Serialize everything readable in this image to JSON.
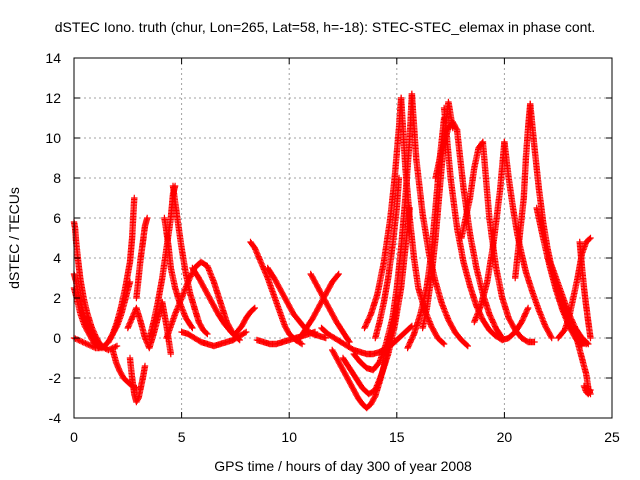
{
  "chart_data": {
    "type": "scatter",
    "title": "dSTEC Iono. truth (chur, Lon=265, Lat=58, h=-18): STEC-STEC_elemax in phase cont.",
    "xlabel": "GPS time / hours of day 300 of year 2008",
    "ylabel": "dSTEC  / TECUs",
    "xlim": [
      0,
      25
    ],
    "ylim": [
      -4,
      14
    ],
    "xticks": [
      0,
      5,
      10,
      15,
      20,
      25
    ],
    "yticks": [
      -4,
      -2,
      0,
      2,
      4,
      6,
      8,
      10,
      12,
      14
    ],
    "grid": true,
    "marker": "plus",
    "color": "#ff0000",
    "series": [
      {
        "x": [
          0.0,
          0.05,
          0.1,
          0.2,
          0.3,
          0.45,
          0.6,
          0.8,
          1.0,
          1.2,
          1.4,
          1.6,
          1.8,
          2.0
        ],
        "y": [
          5.8,
          5.5,
          4.8,
          3.8,
          2.9,
          2.0,
          1.3,
          0.6,
          0.1,
          -0.3,
          -0.5,
          -0.6,
          -0.5,
          -0.4
        ]
      },
      {
        "x": [
          0.0,
          0.1,
          0.2,
          0.35,
          0.5,
          0.7,
          0.9,
          1.1,
          1.3,
          1.5
        ],
        "y": [
          3.2,
          2.8,
          2.2,
          1.6,
          1.0,
          0.5,
          0.1,
          -0.2,
          -0.4,
          -0.5
        ]
      },
      {
        "x": [
          0.0,
          0.2,
          0.4,
          0.6,
          0.8,
          1.0,
          1.2,
          1.4,
          1.6,
          1.8,
          2.0,
          2.2,
          2.4,
          2.6
        ],
        "y": [
          0.0,
          -0.1,
          -0.2,
          -0.3,
          -0.4,
          -0.5,
          -0.5,
          -0.4,
          -0.2,
          0.2,
          0.6,
          1.2,
          2.0,
          2.8
        ]
      },
      {
        "x": [
          0.0,
          0.15,
          0.3,
          0.5,
          0.7,
          0.9,
          1.1,
          1.3
        ],
        "y": [
          2.5,
          1.9,
          1.2,
          0.6,
          0.2,
          -0.2,
          -0.4,
          -0.5
        ]
      },
      {
        "x": [
          1.6,
          1.8,
          2.0,
          2.2,
          2.4,
          2.6,
          2.7,
          2.8
        ],
        "y": [
          -0.2,
          0.2,
          0.8,
          1.6,
          2.6,
          3.8,
          5.0,
          7.0
        ]
      },
      {
        "x": [
          1.8,
          1.95,
          2.1,
          2.3,
          2.5,
          2.7,
          2.9
        ],
        "y": [
          -0.6,
          -1.2,
          -1.6,
          -2.0,
          -2.2,
          -2.4,
          -2.5
        ]
      },
      {
        "x": [
          2.6,
          2.7,
          2.8,
          2.9,
          3.0,
          3.1,
          3.2,
          3.3
        ],
        "y": [
          -1.0,
          -2.0,
          -2.8,
          -3.2,
          -3.0,
          -2.5,
          -2.0,
          -1.4
        ]
      },
      {
        "x": [
          2.9,
          3.0,
          3.1,
          3.2,
          3.3,
          3.4
        ],
        "y": [
          2.0,
          3.0,
          4.0,
          4.8,
          5.6,
          6.0
        ]
      },
      {
        "x": [
          2.5,
          2.7,
          2.9,
          3.1,
          3.3,
          3.5,
          3.7,
          3.9,
          4.1,
          4.3,
          4.5
        ],
        "y": [
          0.5,
          1.0,
          1.5,
          0.8,
          0.0,
          -0.5,
          0.2,
          1.0,
          1.8,
          0.6,
          -0.8
        ]
      },
      {
        "x": [
          3.5,
          3.7,
          3.9,
          4.1,
          4.3,
          4.5,
          4.6,
          4.7
        ],
        "y": [
          0.0,
          0.8,
          1.8,
          3.0,
          4.5,
          6.0,
          7.2,
          7.6
        ]
      },
      {
        "x": [
          4.6,
          4.8,
          5.0,
          5.2,
          5.4,
          5.6,
          5.8,
          6.0,
          6.2
        ],
        "y": [
          7.6,
          6.0,
          4.5,
          3.2,
          2.2,
          1.5,
          0.8,
          0.4,
          0.2
        ]
      },
      {
        "x": [
          4.2,
          4.3,
          4.4,
          4.5,
          4.7,
          4.9,
          5.2,
          5.5
        ],
        "y": [
          6.0,
          5.3,
          4.5,
          3.5,
          2.5,
          1.8,
          1.0,
          0.5
        ]
      },
      {
        "x": [
          4.3,
          4.5,
          4.7,
          5.0,
          5.3,
          5.6,
          5.9,
          6.2,
          6.5,
          6.8,
          7.1,
          7.4,
          7.7
        ],
        "y": [
          0.0,
          0.6,
          1.2,
          2.0,
          2.8,
          3.5,
          3.8,
          3.6,
          2.8,
          1.8,
          0.8,
          0.2,
          -0.1
        ]
      },
      {
        "x": [
          5.0,
          5.3,
          5.6,
          5.9,
          6.2,
          6.5,
          6.8,
          7.1,
          7.4,
          7.7,
          8.0
        ],
        "y": [
          0.3,
          0.2,
          0.0,
          -0.2,
          -0.3,
          -0.4,
          -0.3,
          -0.2,
          -0.1,
          0.1,
          0.3
        ]
      },
      {
        "x": [
          5.5,
          5.8,
          6.1,
          6.4,
          6.7,
          7.0,
          7.3,
          7.6
        ],
        "y": [
          3.5,
          3.0,
          2.4,
          1.8,
          1.2,
          0.7,
          0.3,
          0.0
        ]
      },
      {
        "x": [
          7.5,
          7.8,
          8.0,
          8.2,
          8.4
        ],
        "y": [
          0.2,
          0.6,
          1.0,
          1.3,
          1.5
        ]
      },
      {
        "x": [
          8.2,
          8.4,
          8.6,
          8.8,
          9.0,
          9.2,
          9.4,
          9.6,
          9.8,
          10.0,
          10.3,
          10.6
        ],
        "y": [
          4.8,
          4.5,
          4.0,
          3.5,
          3.0,
          2.4,
          1.8,
          1.2,
          0.6,
          0.2,
          -0.1,
          -0.3
        ]
      },
      {
        "x": [
          8.5,
          8.8,
          9.1,
          9.4,
          9.7,
          10.0,
          10.3,
          10.6,
          10.9,
          11.2
        ],
        "y": [
          -0.1,
          -0.2,
          -0.3,
          -0.3,
          -0.2,
          -0.1,
          0.0,
          0.1,
          0.2,
          0.3
        ]
      },
      {
        "x": [
          9.0,
          9.3,
          9.6,
          9.9,
          10.2,
          10.5,
          10.8,
          11.1,
          11.4,
          11.7
        ],
        "y": [
          3.5,
          3.0,
          2.4,
          1.8,
          1.2,
          0.8,
          0.4,
          0.2,
          0.1,
          0.0
        ]
      },
      {
        "x": [
          10.5,
          10.8,
          11.1,
          11.4,
          11.7,
          12.0,
          12.3
        ],
        "y": [
          0.0,
          0.5,
          1.0,
          1.6,
          2.2,
          2.8,
          3.2
        ]
      },
      {
        "x": [
          11.0,
          11.3,
          11.6,
          11.9,
          12.2,
          12.5,
          12.8
        ],
        "y": [
          3.2,
          2.6,
          2.0,
          1.4,
          0.8,
          0.3,
          -0.2
        ]
      },
      {
        "x": [
          11.5,
          11.8,
          12.1,
          12.4,
          12.7,
          13.0,
          13.3,
          13.6,
          13.9,
          14.2,
          14.5,
          14.8,
          15.1,
          15.4,
          15.7
        ],
        "y": [
          0.5,
          0.2,
          0.0,
          -0.2,
          -0.4,
          -0.6,
          -0.7,
          -0.8,
          -0.8,
          -0.7,
          -0.5,
          -0.3,
          0.0,
          0.3,
          0.6
        ]
      },
      {
        "x": [
          12.0,
          12.3,
          12.6,
          12.9,
          13.2,
          13.4,
          13.6,
          13.8,
          14.0,
          14.2,
          14.4,
          14.6,
          14.8,
          15.0
        ],
        "y": [
          -0.6,
          -1.2,
          -1.8,
          -2.4,
          -3.0,
          -3.3,
          -3.5,
          -3.3,
          -2.9,
          -2.2,
          -1.4,
          -0.5,
          0.5,
          1.5
        ]
      },
      {
        "x": [
          12.5,
          12.8,
          13.1,
          13.4,
          13.7,
          14.0,
          14.3,
          14.6,
          14.9,
          15.2,
          15.4,
          15.6
        ],
        "y": [
          -1.0,
          -1.5,
          -2.0,
          -2.5,
          -2.8,
          -2.6,
          -1.8,
          -0.8,
          0.6,
          2.5,
          4.5,
          6.5
        ]
      },
      {
        "x": [
          13.0,
          13.3,
          13.6,
          13.9,
          14.2,
          14.5,
          14.8,
          15.0,
          15.2,
          15.4,
          15.6,
          15.7
        ],
        "y": [
          -0.8,
          -1.2,
          -1.5,
          -1.6,
          -1.2,
          -0.3,
          1.0,
          2.5,
          4.5,
          7.0,
          10.0,
          12.2
        ]
      },
      {
        "x": [
          13.5,
          13.8,
          14.1,
          14.4,
          14.7,
          14.9,
          15.1,
          15.2
        ],
        "y": [
          0.5,
          1.2,
          2.2,
          3.8,
          6.0,
          8.0,
          10.5,
          12.0
        ]
      },
      {
        "x": [
          15.2,
          15.4,
          15.6,
          15.8,
          16.0,
          16.3,
          16.6,
          16.9,
          17.2
        ],
        "y": [
          12.0,
          8.5,
          6.0,
          4.0,
          2.5,
          1.4,
          0.6,
          0.0,
          -0.3
        ]
      },
      {
        "x": [
          14.0,
          14.2,
          14.4,
          14.6,
          14.8,
          15.0,
          15.1
        ],
        "y": [
          0.0,
          0.8,
          1.8,
          3.0,
          4.6,
          6.5,
          8.0
        ]
      },
      {
        "x": [
          15.7,
          15.9,
          16.2,
          16.5,
          16.8,
          17.1,
          17.4,
          17.7,
          18.0,
          18.3
        ],
        "y": [
          12.2,
          9.0,
          6.2,
          4.2,
          2.8,
          1.7,
          0.9,
          0.3,
          -0.1,
          -0.4
        ]
      },
      {
        "x": [
          15.5,
          15.8,
          16.1,
          16.4,
          16.6,
          16.8,
          17.0,
          17.2
        ],
        "y": [
          -0.5,
          0.2,
          1.2,
          2.6,
          4.2,
          6.5,
          9.0,
          11.0
        ]
      },
      {
        "x": [
          16.2,
          16.4,
          16.6,
          16.8,
          17.0,
          17.2,
          17.4,
          17.6
        ],
        "y": [
          0.5,
          1.5,
          3.0,
          5.0,
          7.5,
          10.0,
          11.8,
          10.5
        ]
      },
      {
        "x": [
          17.2,
          17.5,
          17.8,
          18.1,
          18.4,
          18.7,
          19.0,
          19.3,
          19.6,
          19.9,
          20.2,
          20.5,
          20.8,
          21.1
        ],
        "y": [
          11.5,
          8.0,
          5.5,
          3.8,
          2.6,
          1.6,
          0.9,
          0.4,
          0.1,
          -0.1,
          0.0,
          0.3,
          0.8,
          1.5
        ]
      },
      {
        "x": [
          16.8,
          17.0,
          17.2,
          17.4,
          17.6,
          17.8
        ],
        "y": [
          8.0,
          9.0,
          9.8,
          10.5,
          10.8,
          10.4
        ]
      },
      {
        "x": [
          17.8,
          18.1,
          18.4,
          18.7,
          19.0,
          19.3,
          19.6,
          19.9
        ],
        "y": [
          10.4,
          7.5,
          5.2,
          3.5,
          2.2,
          1.2,
          0.5,
          0.0
        ]
      },
      {
        "x": [
          18.0,
          18.2,
          18.4,
          18.6,
          18.8,
          19.0
        ],
        "y": [
          5.0,
          6.0,
          7.0,
          8.5,
          9.5,
          9.8
        ]
      },
      {
        "x": [
          19.0,
          19.3,
          19.6,
          19.9,
          20.2,
          20.5,
          20.8,
          21.1,
          21.4
        ],
        "y": [
          9.8,
          6.0,
          3.6,
          2.0,
          1.0,
          0.4,
          0.0,
          -0.2,
          -0.2
        ]
      },
      {
        "x": [
          18.6,
          18.9,
          19.2,
          19.5,
          19.8,
          20.0
        ],
        "y": [
          0.8,
          1.6,
          2.8,
          4.8,
          7.4,
          9.8
        ]
      },
      {
        "x": [
          20.0,
          20.2,
          20.4,
          20.6,
          20.8,
          21.0,
          21.3,
          21.6,
          21.9,
          22.2
        ],
        "y": [
          9.8,
          8.0,
          6.5,
          5.2,
          4.2,
          3.3,
          2.3,
          1.4,
          0.6,
          0.0
        ]
      },
      {
        "x": [
          20.5,
          20.7,
          20.9,
          21.0,
          21.1,
          21.2
        ],
        "y": [
          3.0,
          5.0,
          7.0,
          9.0,
          10.5,
          11.7
        ]
      },
      {
        "x": [
          21.2,
          21.4,
          21.6,
          21.8,
          22.0,
          22.3,
          22.6,
          22.9,
          23.2,
          23.5,
          23.8
        ],
        "y": [
          11.7,
          9.5,
          7.5,
          5.8,
          4.5,
          3.0,
          1.9,
          1.0,
          0.3,
          -0.1,
          -0.3
        ]
      },
      {
        "x": [
          21.5,
          21.8,
          22.1,
          22.4,
          22.7,
          23.0,
          23.3,
          23.6
        ],
        "y": [
          6.5,
          5.0,
          3.6,
          2.4,
          1.4,
          0.6,
          0.0,
          -0.4
        ]
      },
      {
        "x": [
          22.0,
          22.2,
          22.4,
          22.6,
          22.8,
          23.0,
          23.3,
          23.6,
          23.9
        ],
        "y": [
          4.0,
          3.6,
          3.0,
          2.4,
          1.8,
          1.2,
          0.5,
          0.0,
          -0.3
        ]
      },
      {
        "x": [
          22.5,
          22.8,
          23.0,
          23.2,
          23.4,
          23.6,
          23.8,
          24.0
        ],
        "y": [
          0.0,
          0.4,
          1.0,
          2.0,
          3.0,
          4.2,
          4.8,
          5.0
        ]
      },
      {
        "x": [
          23.2,
          23.4,
          23.6,
          23.8,
          23.9,
          24.0
        ],
        "y": [
          0.5,
          -0.2,
          -1.0,
          -1.8,
          -2.5,
          -2.8
        ]
      },
      {
        "x": [
          23.5,
          23.6,
          23.7,
          23.8,
          23.9,
          24.0
        ],
        "y": [
          4.8,
          3.6,
          2.5,
          1.6,
          0.8,
          0.0
        ]
      },
      {
        "x": [
          23.7,
          23.8,
          23.9,
          24.0
        ],
        "y": [
          -2.4,
          -2.7,
          -2.8,
          -2.6
        ]
      }
    ]
  }
}
